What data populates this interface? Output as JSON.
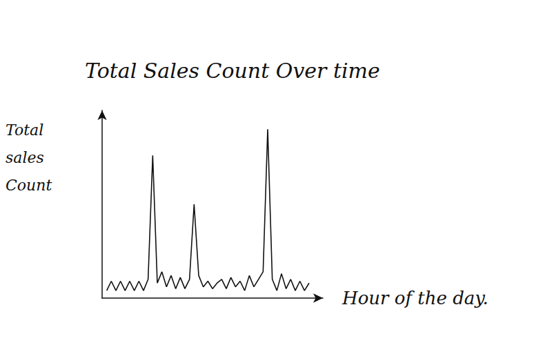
{
  "chart_data": {
    "type": "line",
    "title": "Total Sales Count Over time",
    "x_label": "Hour of the day.",
    "y_label": "Total sales Count",
    "x": [
      0.5,
      1,
      1.5,
      2,
      2.5,
      3,
      3.5,
      4,
      4.5,
      5,
      5.5,
      6,
      6.5,
      7,
      7.5,
      8,
      8.5,
      9,
      9.5,
      10,
      10.5,
      11,
      11.5,
      12,
      12.5,
      13,
      13.5,
      14,
      14.5,
      15,
      15.5,
      16,
      16.5,
      17,
      17.5,
      18,
      18.5,
      19,
      19.5,
      20,
      20.5,
      21,
      21.5,
      22,
      22.5
    ],
    "values": [
      4,
      9,
      4,
      9,
      4,
      9,
      4,
      9,
      4,
      10,
      76,
      8,
      14,
      6,
      12,
      5,
      11,
      5,
      10,
      50,
      12,
      6,
      9,
      5,
      8,
      10,
      5,
      11,
      6,
      9,
      4,
      12,
      6,
      10,
      14,
      90,
      10,
      4,
      13,
      5,
      10,
      4,
      9,
      4,
      8
    ],
    "color": "#111111",
    "marker": "none",
    "line_style": "solid",
    "xlim": [
      0,
      24
    ],
    "ylim": [
      0,
      100
    ],
    "grid": false,
    "tick_labels": false
  }
}
